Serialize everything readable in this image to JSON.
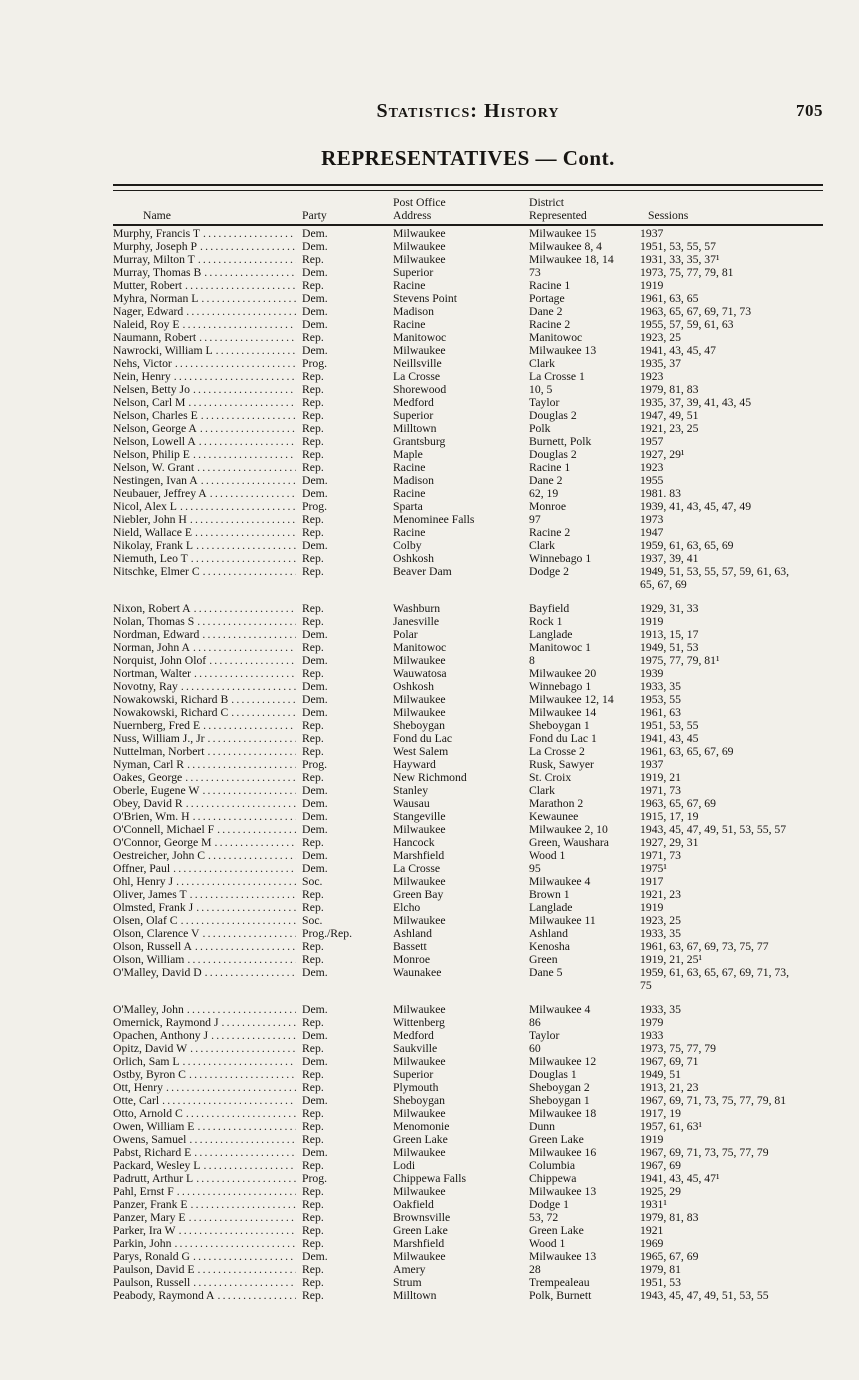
{
  "page": {
    "running_head": "Statistics: History",
    "page_number": "705",
    "section_title": "REPRESENTATIVES — Cont."
  },
  "table": {
    "columns": [
      {
        "line1": "",
        "line2": "Name"
      },
      {
        "line1": "",
        "line2": "Party"
      },
      {
        "line1": "Post Office",
        "line2": "Address"
      },
      {
        "line1": "District",
        "line2": "Represented"
      },
      {
        "line1": "",
        "line2": "Sessions"
      }
    ],
    "rows": [
      {
        "name": "Murphy, Francis T",
        "party": "Dem.",
        "address": "Milwaukee",
        "district": "Milwaukee 15",
        "sessions": "1937"
      },
      {
        "name": "Murphy, Joseph P",
        "party": "Dem.",
        "address": "Milwaukee",
        "district": "Milwaukee 8, 4",
        "sessions": "1951, 53, 55, 57"
      },
      {
        "name": "Murray, Milton T",
        "party": "Rep.",
        "address": "Milwaukee",
        "district": "Milwaukee 18, 14",
        "sessions": "1931, 33, 35, 37¹"
      },
      {
        "name": "Murray, Thomas B",
        "party": "Dem.",
        "address": "Superior",
        "district": "73",
        "sessions": "1973, 75, 77, 79, 81"
      },
      {
        "name": "Mutter, Robert",
        "party": "Rep.",
        "address": "Racine",
        "district": "Racine 1",
        "sessions": "1919"
      },
      {
        "name": "Myhra, Norman L",
        "party": "Dem.",
        "address": "Stevens Point",
        "district": "Portage",
        "sessions": "1961, 63, 65"
      },
      {
        "name": "Nager, Edward",
        "party": "Dem.",
        "address": "Madison",
        "district": "Dane 2",
        "sessions": "1963, 65, 67, 69, 71, 73"
      },
      {
        "name": "Naleid, Roy E",
        "party": "Dem.",
        "address": "Racine",
        "district": "Racine 2",
        "sessions": "1955, 57, 59, 61, 63"
      },
      {
        "name": "Naumann, Robert",
        "party": "Rep.",
        "address": "Manitowoc",
        "district": "Manitowoc",
        "sessions": "1923, 25"
      },
      {
        "name": "Nawrocki, William L",
        "party": "Dem.",
        "address": "Milwaukee",
        "district": "Milwaukee 13",
        "sessions": "1941, 43, 45, 47"
      },
      {
        "name": "Nehs, Victor",
        "party": "Prog.",
        "address": "Neillsville",
        "district": "Clark",
        "sessions": "1935, 37"
      },
      {
        "name": "Nein, Henry",
        "party": "Rep.",
        "address": "La Crosse",
        "district": "La Crosse 1",
        "sessions": "1923"
      },
      {
        "name": "Nelsen, Betty Jo",
        "party": "Rep.",
        "address": "Shorewood",
        "district": "10, 5",
        "sessions": "1979, 81, 83"
      },
      {
        "name": "Nelson, Carl M",
        "party": "Rep.",
        "address": "Medford",
        "district": "Taylor",
        "sessions": "1935, 37, 39, 41, 43, 45"
      },
      {
        "name": "Nelson, Charles E",
        "party": "Rep.",
        "address": "Superior",
        "district": "Douglas 2",
        "sessions": "1947, 49, 51"
      },
      {
        "name": "Nelson, George A",
        "party": "Rep.",
        "address": "Milltown",
        "district": "Polk",
        "sessions": "1921, 23, 25"
      },
      {
        "name": "Nelson, Lowell A",
        "party": "Rep.",
        "address": "Grantsburg",
        "district": "Burnett, Polk",
        "sessions": "1957"
      },
      {
        "name": "Nelson, Philip E",
        "party": "Rep.",
        "address": "Maple",
        "district": "Douglas 2",
        "sessions": "1927, 29¹"
      },
      {
        "name": "Nelson, W. Grant",
        "party": "Rep.",
        "address": "Racine",
        "district": "Racine 1",
        "sessions": "1923"
      },
      {
        "name": "Nestingen, Ivan A",
        "party": "Dem.",
        "address": "Madison",
        "district": "Dane 2",
        "sessions": "1955"
      },
      {
        "name": "Neubauer, Jeffrey A",
        "party": "Dem.",
        "address": "Racine",
        "district": "62, 19",
        "sessions": "1981. 83"
      },
      {
        "name": "Nicol, Alex L",
        "party": "Prog.",
        "address": "Sparta",
        "district": "Monroe",
        "sessions": "1939, 41, 43, 45, 47, 49"
      },
      {
        "name": "Niebler, John H",
        "party": "Rep.",
        "address": "Menominee Falls",
        "district": "97",
        "sessions": "1973"
      },
      {
        "name": "Nield, Wallace E",
        "party": "Rep.",
        "address": "Racine",
        "district": "Racine 2",
        "sessions": "1947"
      },
      {
        "name": "Nikolay, Frank L",
        "party": "Dem.",
        "address": "Colby",
        "district": "Clark",
        "sessions": "1959, 61, 63, 65, 69"
      },
      {
        "name": "Niemuth, Leo T",
        "party": "Rep.",
        "address": "Oshkosh",
        "district": "Winnebago 1",
        "sessions": "1937, 39, 41"
      },
      {
        "name": "Nitschke, Elmer C",
        "party": "Rep.",
        "address": "Beaver Dam",
        "district": "Dodge 2",
        "sessions": "1949, 51, 53, 55, 57, 59, 61, 63, 65, 67, 69"
      },
      {
        "name": "Nixon, Robert A",
        "party": "Rep.",
        "address": "Washburn",
        "district": "Bayfield",
        "sessions": "1929, 31, 33",
        "gap_before": true
      },
      {
        "name": "Nolan, Thomas S",
        "party": "Rep.",
        "address": "Janesville",
        "district": "Rock 1",
        "sessions": "1919"
      },
      {
        "name": "Nordman, Edward",
        "party": "Dem.",
        "address": "Polar",
        "district": "Langlade",
        "sessions": "1913, 15, 17"
      },
      {
        "name": "Norman, John A",
        "party": "Rep.",
        "address": "Manitowoc",
        "district": "Manitowoc 1",
        "sessions": "1949, 51, 53"
      },
      {
        "name": "Norquist, John Olof",
        "party": "Dem.",
        "address": "Milwaukee",
        "district": "8",
        "sessions": "1975, 77, 79, 81¹"
      },
      {
        "name": "Nortman, Walter",
        "party": "Rep.",
        "address": "Wauwatosa",
        "district": "Milwaukee 20",
        "sessions": "1939"
      },
      {
        "name": "Novotny, Ray",
        "party": "Dem.",
        "address": "Oshkosh",
        "district": "Winnebago 1",
        "sessions": "1933, 35"
      },
      {
        "name": "Nowakowski, Richard B",
        "party": "Dem.",
        "address": "Milwaukee",
        "district": "Milwaukee 12, 14",
        "sessions": "1953, 55"
      },
      {
        "name": "Nowakowski, Richard C",
        "party": "Dem.",
        "address": "Milwaukee",
        "district": "Milwaukee 14",
        "sessions": "1961, 63"
      },
      {
        "name": "Nuernberg, Fred E",
        "party": "Rep.",
        "address": "Sheboygan",
        "district": "Sheboygan 1",
        "sessions": "1951, 53, 55"
      },
      {
        "name": "Nuss, William J., Jr",
        "party": "Rep.",
        "address": "Fond du Lac",
        "district": "Fond du Lac 1",
        "sessions": "1941, 43, 45"
      },
      {
        "name": "Nuttelman, Norbert",
        "party": "Rep.",
        "address": "West Salem",
        "district": "La Crosse 2",
        "sessions": "1961, 63, 65, 67, 69"
      },
      {
        "name": "Nyman, Carl R",
        "party": "Prog.",
        "address": "Hayward",
        "district": "Rusk, Sawyer",
        "sessions": "1937"
      },
      {
        "name": "Oakes, George",
        "party": "Rep.",
        "address": "New Richmond",
        "district": "St. Croix",
        "sessions": "1919, 21"
      },
      {
        "name": "Oberle, Eugene W",
        "party": "Dem.",
        "address": "Stanley",
        "district": "Clark",
        "sessions": "1971, 73"
      },
      {
        "name": "Obey, David R",
        "party": "Dem.",
        "address": "Wausau",
        "district": "Marathon 2",
        "sessions": "1963, 65, 67, 69"
      },
      {
        "name": "O'Brien, Wm. H",
        "party": "Dem.",
        "address": "Stangeville",
        "district": "Kewaunee",
        "sessions": "1915, 17, 19"
      },
      {
        "name": "O'Connell, Michael F",
        "party": "Dem.",
        "address": "Milwaukee",
        "district": "Milwaukee 2, 10",
        "sessions": "1943, 45, 47, 49, 51, 53, 55, 57"
      },
      {
        "name": "O'Connor, George M",
        "party": "Rep.",
        "address": "Hancock",
        "district": "Green, Waushara",
        "sessions": "1927, 29, 31"
      },
      {
        "name": "Oestreicher, John C",
        "party": "Dem.",
        "address": "Marshfield",
        "district": "Wood 1",
        "sessions": "1971, 73"
      },
      {
        "name": "Offner, Paul",
        "party": "Dem.",
        "address": "La Crosse",
        "district": "95",
        "sessions": "1975¹"
      },
      {
        "name": "Ohl, Henry J",
        "party": "Soc.",
        "address": "Milwaukee",
        "district": "Milwaukee 4",
        "sessions": "1917"
      },
      {
        "name": "Oliver, James T",
        "party": "Rep.",
        "address": "Green Bay",
        "district": "Brown 1",
        "sessions": "1921, 23"
      },
      {
        "name": "Olmsted, Frank J",
        "party": "Rep.",
        "address": "Elcho",
        "district": "Langlade",
        "sessions": "1919"
      },
      {
        "name": "Olsen, Olaf C",
        "party": "Soc.",
        "address": "Milwaukee",
        "district": "Milwaukee 11",
        "sessions": "1923, 25"
      },
      {
        "name": "Olson, Clarence V",
        "party": "Prog./Rep.",
        "address": "Ashland",
        "district": "Ashland",
        "sessions": "1933, 35"
      },
      {
        "name": "Olson, Russell A",
        "party": "Rep.",
        "address": "Bassett",
        "district": "Kenosha",
        "sessions": "1961, 63, 67, 69, 73, 75, 77"
      },
      {
        "name": "Olson, William",
        "party": "Rep.",
        "address": "Monroe",
        "district": "Green",
        "sessions": "1919, 21, 25¹"
      },
      {
        "name": "O'Malley, David D",
        "party": "Dem.",
        "address": "Waunakee",
        "district": "Dane 5",
        "sessions": "1959, 61, 63, 65, 67, 69, 71, 73, 75"
      },
      {
        "name": "O'Malley, John",
        "party": "Dem.",
        "address": "Milwaukee",
        "district": "Milwaukee 4",
        "sessions": "1933, 35",
        "gap_before": true
      },
      {
        "name": "Omernick, Raymond J",
        "party": "Rep.",
        "address": "Wittenberg",
        "district": "86",
        "sessions": "1979"
      },
      {
        "name": "Opachen, Anthony J",
        "party": "Dem.",
        "address": "Medford",
        "district": "Taylor",
        "sessions": "1933"
      },
      {
        "name": "Opitz, David W",
        "party": "Rep.",
        "address": "Saukville",
        "district": "60",
        "sessions": "1973, 75, 77, 79"
      },
      {
        "name": "Orlich, Sam L",
        "party": "Dem.",
        "address": "Milwaukee",
        "district": "Milwaukee 12",
        "sessions": "1967, 69, 71"
      },
      {
        "name": "Ostby, Byron C",
        "party": "Rep.",
        "address": "Superior",
        "district": "Douglas 1",
        "sessions": "1949, 51"
      },
      {
        "name": "Ott, Henry",
        "party": "Rep.",
        "address": "Plymouth",
        "district": "Sheboygan 2",
        "sessions": "1913, 21, 23"
      },
      {
        "name": "Otte, Carl",
        "party": "Dem.",
        "address": "Sheboygan",
        "district": "Sheboygan 1",
        "sessions": "1967, 69, 71, 73, 75, 77, 79, 81"
      },
      {
        "name": "Otto, Arnold C",
        "party": "Rep.",
        "address": "Milwaukee",
        "district": "Milwaukee 18",
        "sessions": "1917, 19"
      },
      {
        "name": "Owen, William E",
        "party": "Rep.",
        "address": "Menomonie",
        "district": "Dunn",
        "sessions": "1957, 61, 63¹"
      },
      {
        "name": "Owens, Samuel",
        "party": "Rep.",
        "address": "Green Lake",
        "district": "Green Lake",
        "sessions": "1919"
      },
      {
        "name": "Pabst, Richard E",
        "party": "Dem.",
        "address": "Milwaukee",
        "district": "Milwaukee 16",
        "sessions": "1967, 69, 71, 73, 75, 77, 79"
      },
      {
        "name": "Packard, Wesley L",
        "party": "Rep.",
        "address": "Lodi",
        "district": "Columbia",
        "sessions": "1967, 69"
      },
      {
        "name": "Padrutt, Arthur L",
        "party": "Prog.",
        "address": "Chippewa Falls",
        "district": "Chippewa",
        "sessions": "1941, 43, 45, 47¹"
      },
      {
        "name": "Pahl, Ernst F",
        "party": "Rep.",
        "address": "Milwaukee",
        "district": "Milwaukee 13",
        "sessions": "1925, 29"
      },
      {
        "name": "Panzer, Frank E",
        "party": "Rep.",
        "address": "Oakfield",
        "district": "Dodge 1",
        "sessions": "1931¹"
      },
      {
        "name": "Panzer, Mary E",
        "party": "Rep.",
        "address": "Brownsville",
        "district": "53, 72",
        "sessions": "1979, 81, 83"
      },
      {
        "name": "Parker, Ira W",
        "party": "Rep.",
        "address": "Green Lake",
        "district": "Green Lake",
        "sessions": "1921"
      },
      {
        "name": "Parkin, John",
        "party": "Rep.",
        "address": "Marshfield",
        "district": "Wood 1",
        "sessions": "1969"
      },
      {
        "name": "Parys, Ronald G",
        "party": "Dem.",
        "address": "Milwaukee",
        "district": "Milwaukee 13",
        "sessions": "1965, 67, 69"
      },
      {
        "name": "Paulson, David E",
        "party": "Rep.",
        "address": "Amery",
        "district": "28",
        "sessions": "1979, 81"
      },
      {
        "name": "Paulson, Russell",
        "party": "Rep.",
        "address": "Strum",
        "district": "Trempealeau",
        "sessions": "1951, 53"
      },
      {
        "name": "Peabody, Raymond A",
        "party": "Rep.",
        "address": "Milltown",
        "district": "Polk, Burnett",
        "sessions": "1943, 45, 47, 49, 51, 53, 55"
      }
    ]
  }
}
